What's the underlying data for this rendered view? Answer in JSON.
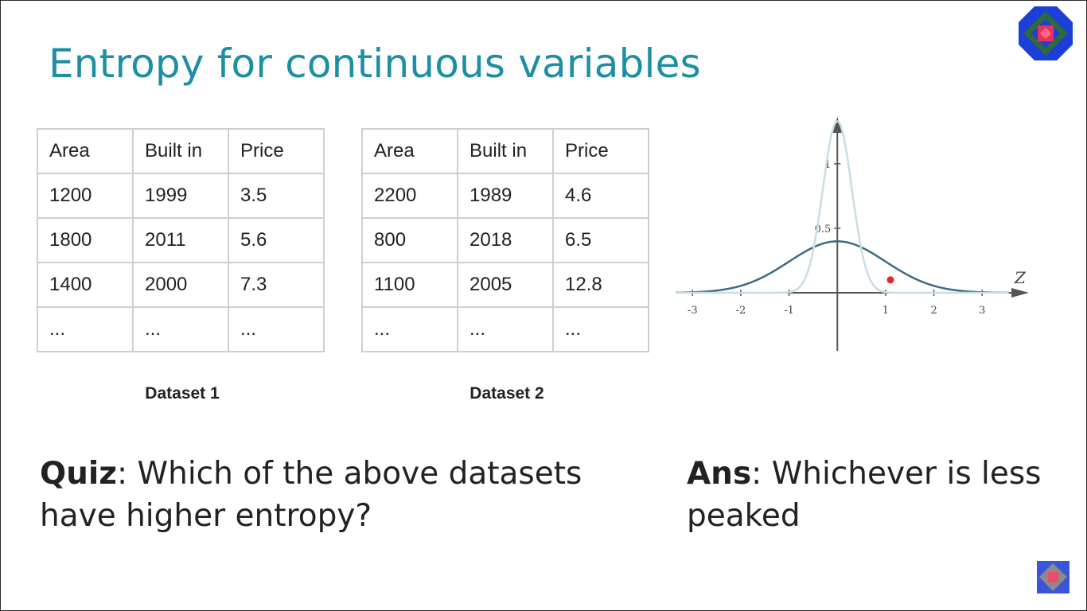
{
  "title": "Entropy for continuous variables",
  "datasets": [
    {
      "caption": "Dataset 1",
      "headers": [
        "Area",
        "Built in",
        "Price"
      ],
      "rows": [
        [
          "1200",
          "1999",
          "3.5"
        ],
        [
          "1800",
          "2011",
          "5.6"
        ],
        [
          "1400",
          "2000",
          "7.3"
        ],
        [
          "...",
          "...",
          "..."
        ]
      ]
    },
    {
      "caption": "Dataset 2",
      "headers": [
        "Area",
        "Built in",
        "Price"
      ],
      "rows": [
        [
          "2200",
          "1989",
          "4.6"
        ],
        [
          "800",
          "2018",
          "6.5"
        ],
        [
          "1100",
          "2005",
          "12.8"
        ],
        [
          "...",
          "...",
          "..."
        ]
      ]
    }
  ],
  "quiz": {
    "label": "Quiz",
    "text": ": Which of the above datasets have higher entropy?"
  },
  "answer": {
    "label": "Ans",
    "text": ": Whichever is less peaked"
  },
  "chart_data": {
    "type": "line",
    "x_axis_label": "Z",
    "x_ticks": [
      "-3",
      "-2",
      "-1",
      "1",
      "2",
      "3"
    ],
    "y_ticks": [
      "0.5",
      "1"
    ],
    "xlim": [
      -3.4,
      4.1
    ],
    "ylim": [
      -0.45,
      1.4
    ],
    "series": [
      {
        "color": "#3d6b82",
        "sigma": 1.0
      },
      {
        "color": "#c9dde4",
        "sigma": 0.3
      }
    ],
    "marker": {
      "x": 1.1,
      "y": 0.1,
      "color": "#e8272c"
    }
  },
  "colors": {
    "title": "#1d8fa5",
    "table_border": "#cfcfcf",
    "text": "#222222"
  }
}
